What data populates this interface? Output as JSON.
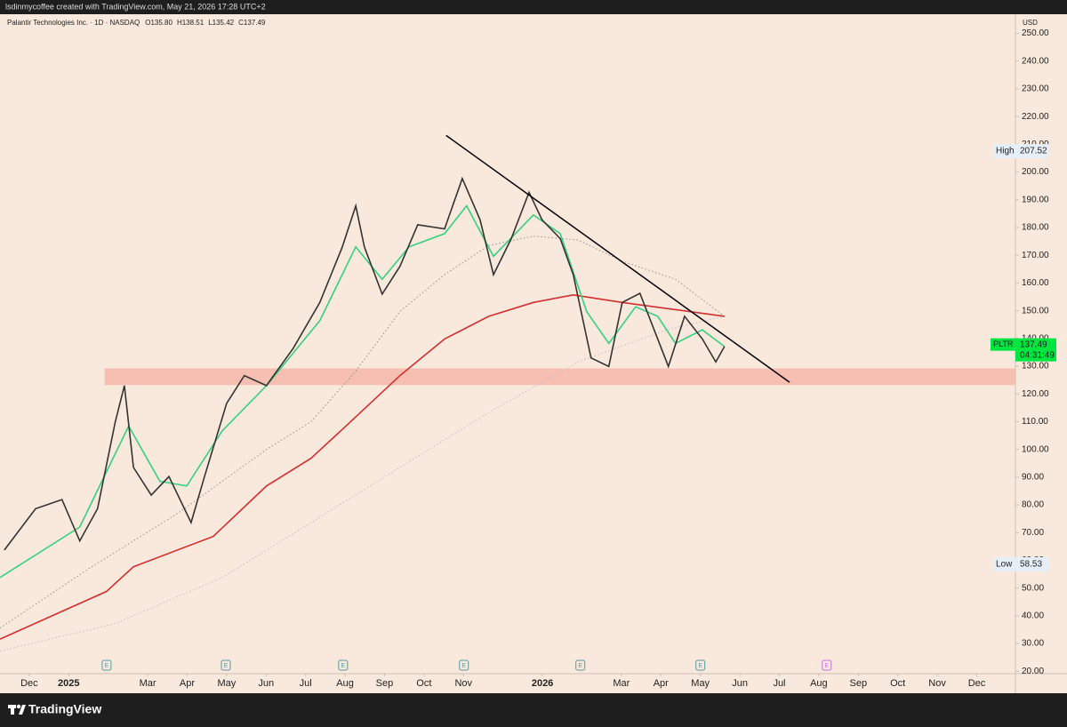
{
  "watermark": "lsdinmycoffee created with TradingView.com, May 21, 2026 17:28 UTC+2",
  "brand": "TradingView",
  "chart_data": {
    "type": "line",
    "title": "Palantir Technologies Inc. · 1D · NASDAQ",
    "ohlc": [
      "O135.80",
      "H138.51",
      "L135.42",
      "C137.49"
    ],
    "currency": "USD",
    "xlim": [
      -0.74,
      24.98
    ],
    "ylim": [
      19.14,
      256.9
    ],
    "grid": false,
    "xticks": [
      {
        "value": 0,
        "label": "Dec"
      },
      {
        "value": 1,
        "label": "2025"
      },
      {
        "value": 3,
        "label": "Mar"
      },
      {
        "value": 4,
        "label": "Apr"
      },
      {
        "value": 5,
        "label": "May"
      },
      {
        "value": 6,
        "label": "Jun"
      },
      {
        "value": 7,
        "label": "Jul"
      },
      {
        "value": 8,
        "label": "Aug"
      },
      {
        "value": 9,
        "label": "Sep"
      },
      {
        "value": 10,
        "label": "Oct"
      },
      {
        "value": 11,
        "label": "Nov"
      },
      {
        "value": 13,
        "label": "2026"
      },
      {
        "value": 15,
        "label": "Mar"
      },
      {
        "value": 16,
        "label": "Apr"
      },
      {
        "value": 17,
        "label": "May"
      },
      {
        "value": 18,
        "label": "Jun"
      },
      {
        "value": 19,
        "label": "Jul"
      },
      {
        "value": 20,
        "label": "Aug"
      },
      {
        "value": 21,
        "label": "Sep"
      },
      {
        "value": 22,
        "label": "Oct"
      },
      {
        "value": 23,
        "label": "Nov"
      },
      {
        "value": 24,
        "label": "Dec"
      }
    ],
    "yticks": [
      {
        "value": 20,
        "label": "20.00"
      },
      {
        "value": 30,
        "label": "30.00"
      },
      {
        "value": 40,
        "label": "40.00"
      },
      {
        "value": 50,
        "label": "50.00"
      },
      {
        "value": 60,
        "label": "60.00"
      },
      {
        "value": 70,
        "label": "70.00"
      },
      {
        "value": 80,
        "label": "80.00"
      },
      {
        "value": 90,
        "label": "90.00"
      },
      {
        "value": 100,
        "label": "100.00"
      },
      {
        "value": 110,
        "label": "110.00"
      },
      {
        "value": 120,
        "label": "120.00"
      },
      {
        "value": 130,
        "label": "130.00"
      },
      {
        "value": 140,
        "label": "140.00"
      },
      {
        "value": 150,
        "label": "150.00"
      },
      {
        "value": 160,
        "label": "160.00"
      },
      {
        "value": 170,
        "label": "170.00"
      },
      {
        "value": 180,
        "label": "180.00"
      },
      {
        "value": 190,
        "label": "190.00"
      },
      {
        "value": 200,
        "label": "200.00"
      },
      {
        "value": 210,
        "label": "210.00"
      },
      {
        "value": 220,
        "label": "220.00"
      },
      {
        "value": 230,
        "label": "230.00"
      },
      {
        "value": 240,
        "label": "240.00"
      },
      {
        "value": 250,
        "label": "250.00"
      }
    ],
    "zone": {
      "x": [
        1.91,
        24.98
      ],
      "values": [
        123.2,
        129.2
      ],
      "color": "#f6b7aa"
    },
    "series": [
      {
        "color": "#c9b8c8",
        "line_style": "dotted",
        "x": [
          -0.74,
          2.18,
          4.89,
          7.14,
          9.39,
          11.64,
          13.9,
          16.15,
          17.61
        ],
        "values": [
          27.3,
          37.2,
          53.8,
          73.6,
          93.5,
          113.3,
          131.5,
          143.1,
          148
        ]
      },
      {
        "color": "#9a8f8a",
        "line_style": "dotted",
        "x": [
          -0.74,
          1.51,
          3.76,
          6.01,
          7.14,
          8.27,
          9.39,
          10.52,
          11.64,
          12.77,
          13.9,
          15.02,
          16.37,
          17.61
        ],
        "values": [
          35.6,
          57,
          76.9,
          100,
          110,
          128.2,
          149.7,
          163,
          173.5,
          176.9,
          175.5,
          167.9,
          161.3,
          148
        ]
      },
      {
        "color": "#d32f2f",
        "line_style": "solid",
        "x": [
          -0.74,
          1.96,
          2.64,
          4.66,
          6.01,
          7.14,
          8.27,
          9.39,
          10.52,
          11.64,
          12.77,
          13.78,
          15.02,
          16.37,
          17.61
        ],
        "values": [
          31.6,
          48.8,
          57.7,
          68.6,
          86.8,
          96.8,
          111.7,
          126.6,
          139.8,
          148,
          153,
          155.7,
          153,
          150.4,
          148
        ]
      },
      {
        "color": "#35d07f",
        "line_style": "solid",
        "x": [
          -0.74,
          1.28,
          2.52,
          3.31,
          3.99,
          4.89,
          6.01,
          7.36,
          8.27,
          8.94,
          9.62,
          10.52,
          11.08,
          11.76,
          12.77,
          13.45,
          14.12,
          14.68,
          15.36,
          15.92,
          16.37,
          17.05,
          17.61
        ],
        "values": [
          53.8,
          72,
          108.4,
          88.5,
          86.8,
          106.7,
          123,
          146.4,
          173,
          161.3,
          173,
          177.8,
          187.8,
          169.6,
          184.5,
          177.8,
          149.7,
          138.2,
          151.4,
          148,
          138.2,
          143.1,
          137.1
        ]
      },
      {
        "color": "#333333",
        "line_style": "solid",
        "x": [
          -0.63,
          0.16,
          0.83,
          1.28,
          1.73,
          2.18,
          2.41,
          2.64,
          3.09,
          3.54,
          4.1,
          4.44,
          5.0,
          5.45,
          6.01,
          6.69,
          7.36,
          7.93,
          8.27,
          8.49,
          8.94,
          9.39,
          9.84,
          10.52,
          10.97,
          11.42,
          11.76,
          12.21,
          12.66,
          12.99,
          13.45,
          13.78,
          14.23,
          14.68,
          15.02,
          15.47,
          15.92,
          16.19,
          16.6,
          17.05,
          17.39,
          17.61
        ],
        "values": [
          63.7,
          78.6,
          81.9,
          67,
          78.6,
          110,
          123,
          93.5,
          83.5,
          90.2,
          73.6,
          90.2,
          116.6,
          126.6,
          123,
          136.5,
          153,
          173,
          187.8,
          173,
          156,
          166,
          181,
          179.5,
          197.7,
          182.8,
          163,
          176,
          192.7,
          182.8,
          176,
          163,
          133,
          129.9,
          153,
          156.3,
          139.8,
          129.9,
          148,
          139.8,
          131.5,
          137.1
        ]
      }
    ],
    "trendline": {
      "x": [
        10.56,
        19.26
      ],
      "values": [
        213.2,
        124.2
      ],
      "color": "#000000"
    },
    "high": {
      "label": "High",
      "value": 207.52
    },
    "low": {
      "label": "Low",
      "value": 58.53
    },
    "last": {
      "symbol": "PLTR",
      "value": 137.49,
      "countdown": "04:31:49",
      "color": "#00e640"
    },
    "events": [
      {
        "x": 1.96,
        "label": "E",
        "color": "#5a9aa0"
      },
      {
        "x": 4.98,
        "label": "E",
        "color": "#5a9aa0"
      },
      {
        "x": 7.95,
        "label": "E",
        "color": "#5a9aa0"
      },
      {
        "x": 11.01,
        "label": "E",
        "color": "#5a9aa0"
      },
      {
        "x": 13.96,
        "label": "E",
        "color": "#5a9aa0"
      },
      {
        "x": 17.0,
        "label": "E",
        "color": "#5a9aa0"
      },
      {
        "x": 20.2,
        "label": "E",
        "color": "#c46fe0"
      }
    ]
  }
}
